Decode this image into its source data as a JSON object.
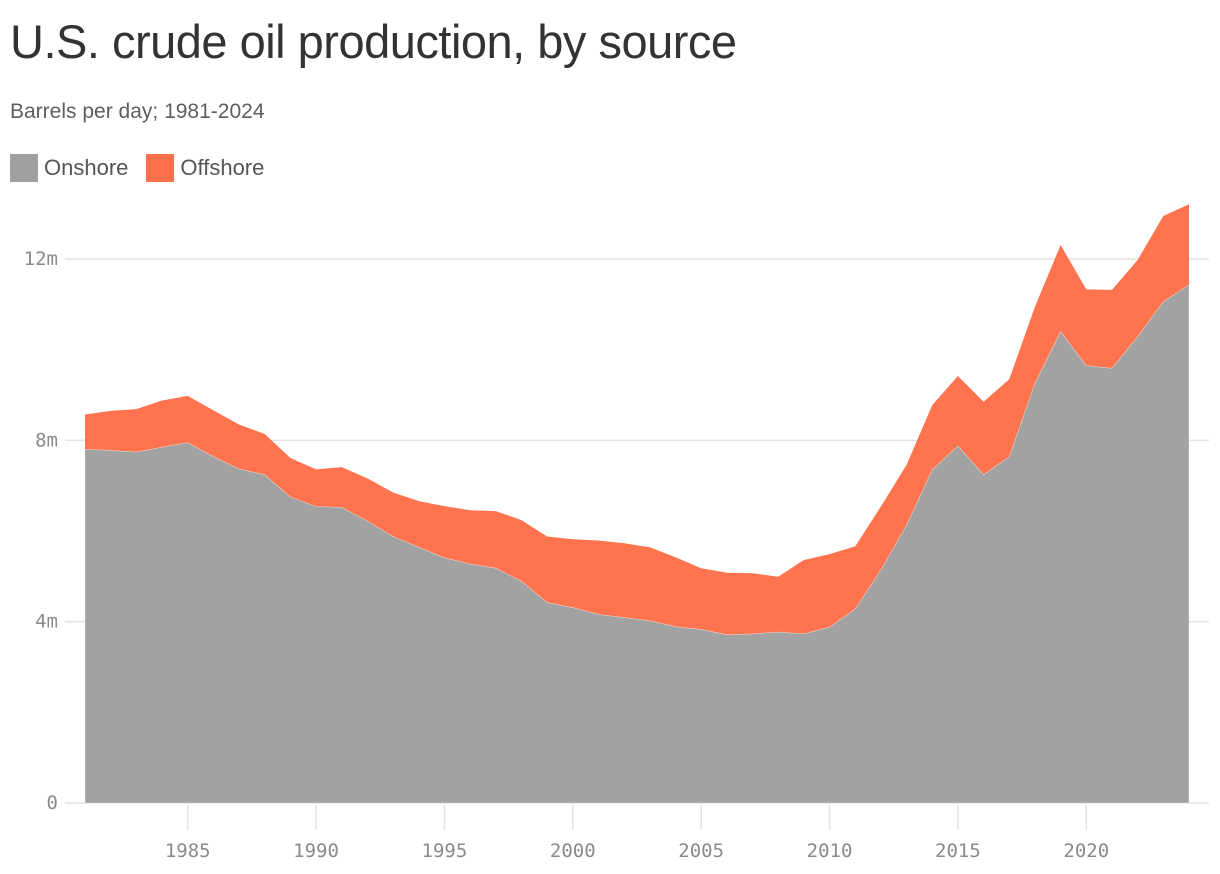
{
  "title": "U.S. crude oil production, by source",
  "subtitle": "Barrels per day; 1981-2024",
  "legend": [
    {
      "label": "Onshore",
      "color": "#a0a0a0"
    },
    {
      "label": "Offshore",
      "color": "#ff704a"
    }
  ],
  "colors": {
    "onshore": "#a0a0a0",
    "offshore": "#ff704a",
    "grid": "#e3e3e3",
    "tick_text": "#8a8a8a"
  },
  "chart_data": {
    "type": "area",
    "stacked": true,
    "title": "U.S. crude oil production, by source",
    "subtitle": "Barrels per day; 1981-2024",
    "xlabel": "",
    "ylabel": "Barrels per day",
    "ylim": [
      0,
      13.5
    ],
    "y_unit": "million barrels per day",
    "y_ticks": [
      0,
      4,
      8,
      12
    ],
    "y_tick_labels": [
      "0",
      "4m",
      "8m",
      "12m"
    ],
    "x_ticks": [
      1985,
      1990,
      1995,
      2000,
      2005,
      2010,
      2015,
      2020
    ],
    "x_tick_labels": [
      "1985",
      "1990",
      "1995",
      "2000",
      "2005",
      "2010",
      "2015",
      "2020"
    ],
    "grid": "horizontal",
    "legend_position": "top-left",
    "x": [
      1981,
      1982,
      1983,
      1984,
      1985,
      1986,
      1987,
      1988,
      1989,
      1990,
      1991,
      1992,
      1993,
      1994,
      1995,
      1996,
      1997,
      1998,
      1999,
      2000,
      2001,
      2002,
      2003,
      2004,
      2005,
      2006,
      2007,
      2008,
      2009,
      2010,
      2011,
      2012,
      2013,
      2014,
      2015,
      2016,
      2017,
      2018,
      2019,
      2020,
      2021,
      2022,
      2023,
      2024
    ],
    "series": [
      {
        "name": "Onshore",
        "values": [
          7.8,
          7.78,
          7.74,
          7.85,
          7.95,
          7.64,
          7.37,
          7.24,
          6.75,
          6.54,
          6.52,
          6.22,
          5.88,
          5.64,
          5.41,
          5.27,
          5.18,
          4.89,
          4.42,
          4.31,
          4.16,
          4.09,
          4.02,
          3.89,
          3.83,
          3.71,
          3.73,
          3.77,
          3.73,
          3.88,
          4.28,
          5.14,
          6.13,
          7.35,
          7.88,
          7.24,
          7.64,
          9.26,
          10.4,
          9.65,
          9.59,
          10.29,
          11.06,
          11.43
        ]
      },
      {
        "name": "Offshore",
        "values": [
          0.77,
          0.87,
          0.95,
          1.03,
          1.03,
          1.02,
          0.98,
          0.9,
          0.86,
          0.82,
          0.89,
          0.94,
          0.97,
          1.02,
          1.14,
          1.19,
          1.26,
          1.35,
          1.46,
          1.51,
          1.63,
          1.64,
          1.62,
          1.53,
          1.35,
          1.37,
          1.34,
          1.22,
          1.63,
          1.61,
          1.38,
          1.4,
          1.33,
          1.43,
          1.54,
          1.61,
          1.71,
          1.69,
          1.91,
          1.68,
          1.73,
          1.69,
          1.89,
          1.78
        ]
      }
    ],
    "totals": [
      8.57,
      8.65,
      8.69,
      8.88,
      8.98,
      8.66,
      8.35,
      8.14,
      7.61,
      7.36,
      7.41,
      7.16,
      6.85,
      6.66,
      6.55,
      6.46,
      6.44,
      6.24,
      5.88,
      5.82,
      5.79,
      5.73,
      5.64,
      5.42,
      5.18,
      5.08,
      5.07,
      4.99,
      5.36,
      5.49,
      5.66,
      6.54,
      7.46,
      8.78,
      9.42,
      8.85,
      9.35,
      10.95,
      12.31,
      11.33,
      11.32,
      11.98,
      12.95,
      13.21
    ]
  }
}
